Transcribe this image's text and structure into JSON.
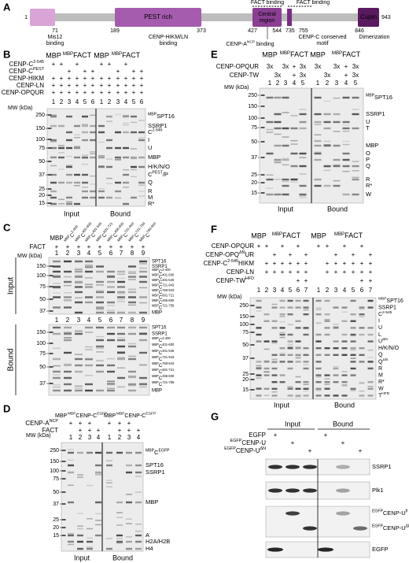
{
  "panel_a": {
    "letter": "A",
    "start": "1",
    "end": "943",
    "domains": [
      "PEST rich",
      [
        "Central",
        "region"
      ],
      "Cupin"
    ],
    "positions": [
      "71",
      "189",
      "373",
      "427",
      "544",
      "735",
      "755",
      "846"
    ],
    "fact_binding": [
      "FACT binding",
      "FACT binding"
    ],
    "notes": [
      [
        "Mis12",
        "binding"
      ],
      [
        "CENP-HIKM/LN",
        "binding"
      ],
      {
        "text": "CENP-A",
        "sup": "NCP",
        "tail": " binding"
      },
      [
        "CENP-C conserved",
        "motif"
      ],
      "Dimerization"
    ]
  },
  "panel_b": {
    "letter": "B",
    "groups": [
      "MBP",
      {
        "lead": "MBP",
        "text": "FACT"
      },
      "MBP",
      {
        "lead": "MBP",
        "text": "FACT"
      }
    ],
    "conditions": [
      {
        "name": {
          "text": "CENP-C",
          "sup": "2-545"
        },
        "marks": [
          "+",
          "+",
          null,
          "+",
          null,
          null,
          "+",
          "+",
          null,
          "+",
          null,
          null
        ]
      },
      {
        "name": {
          "text": "CENP-C",
          "sup": "PEST"
        },
        "marks": [
          null,
          null,
          "+",
          null,
          "+",
          "+",
          null,
          null,
          "+",
          null,
          "+",
          "+"
        ]
      },
      {
        "name": "CENP-HIKM",
        "marks": [
          "+",
          "+",
          "+",
          "+",
          "+",
          "+",
          "+",
          "+",
          "+",
          "+",
          "+",
          "+"
        ]
      },
      {
        "name": "CENP-LN",
        "marks": [
          "+",
          "+",
          "+",
          "+",
          "+",
          "+",
          "+",
          "+",
          "+",
          "+",
          "+",
          "+"
        ]
      },
      {
        "name": "CENP-OPQUR",
        "marks": [
          "+",
          "+",
          "+",
          "+",
          "+",
          "+",
          "+",
          "+",
          "+",
          "+",
          "+",
          "+"
        ]
      }
    ],
    "lanes": [
      1,
      2,
      3,
      4,
      5,
      6,
      1,
      2,
      3,
      4,
      5,
      6
    ],
    "mw_title": "MW (kDa)",
    "mw": [
      250,
      150,
      100,
      75,
      50,
      37,
      25,
      20,
      15
    ],
    "bands": [
      {
        "lead": "MBP",
        "text": "SPT16"
      },
      "SSRP1",
      {
        "text": "C",
        "sup": "2-545"
      },
      "I",
      "U",
      "MBP",
      "H/K/N/O",
      {
        "text": "C",
        "sup": "PEST",
        "tail": "/P"
      },
      "Q",
      "R",
      "M",
      "R*"
    ],
    "sections": [
      "Input",
      "Bound"
    ]
  },
  "panel_c": {
    "letter": "C",
    "headers": [
      "MBP",
      {
        "lead": "MBP",
        "text": "C",
        "sup": "2-400"
      },
      {
        "lead": "MBP",
        "text": "C",
        "sup": "401-600"
      },
      {
        "lead": "MBP",
        "text": "C",
        "sup": "401-545"
      },
      {
        "lead": "MBP",
        "text": "C",
        "sup": "601-721"
      },
      {
        "lead": "MBP",
        "text": "C",
        "sup": "456-600"
      },
      {
        "lead": "MBP",
        "text": "C",
        "sup": "721-943"
      },
      {
        "lead": "MBP",
        "text": "C",
        "sup": "721-759"
      },
      {
        "lead": "MBP",
        "text": "C",
        "sup": "760-943"
      }
    ],
    "fact": {
      "name": "FACT",
      "marks": [
        "+",
        "+",
        "+",
        "+",
        "+",
        "+",
        "+",
        "+",
        "+"
      ]
    },
    "mw_title": "MW (kDa)",
    "input": {
      "label": "Input",
      "lanes": [
        1,
        2,
        3,
        4,
        5,
        6,
        7,
        8,
        9
      ],
      "mw": [
        150,
        100,
        75,
        50,
        37
      ],
      "bands": [
        "SPT16",
        "SSRP1",
        {
          "lead": "MBP",
          "text": "C",
          "sup": "2-400"
        },
        {
          "lead": "MBP",
          "text": "C",
          "sup": "401-600"
        },
        {
          "lead": "MBP",
          "text": "C",
          "sup": "401-545"
        },
        {
          "lead": "MBP",
          "text": "C",
          "sup": "721-943"
        },
        {
          "lead": "MBP",
          "text": "C",
          "sup": "760-943"
        },
        {
          "lead": "MBP",
          "text": "C",
          "sup": "601-721"
        },
        {
          "lead": "MBP",
          "text": "C",
          "sup": "456-600"
        },
        {
          "lead": "MBP",
          "text": "C",
          "sup": "721-759"
        },
        "MBP"
      ]
    },
    "bound": {
      "label": "Bound",
      "lanes": [
        1,
        2,
        3,
        4,
        5,
        6,
        7,
        8,
        9
      ],
      "mw": [
        150,
        100,
        75,
        50,
        37
      ],
      "bands": [
        "SPT16",
        "SSRP1",
        {
          "lead": "MBP",
          "text": "C",
          "sup": "2-400"
        },
        {
          "lead": "MBP",
          "text": "C",
          "sup": "401-600"
        },
        {
          "lead": "MBP",
          "text": "C",
          "sup": "401-545"
        },
        {
          "lead": "MBP",
          "text": "C",
          "sup": "721-943"
        },
        {
          "lead": "MBP",
          "text": "C",
          "sup": "760-943"
        },
        {
          "lead": "MBP",
          "text": "C",
          "sup": "601-721"
        },
        {
          "lead": "MBP",
          "text": "C",
          "sup": "456-600"
        },
        {
          "lead": "MBP",
          "text": "C",
          "sup": "721-759"
        },
        "MBP"
      ]
    }
  },
  "panel_d": {
    "letter": "D",
    "groups": [
      "MBP",
      {
        "lead": "MBP",
        "text": "CENP-C",
        "sup": "EGFP"
      },
      "MBP",
      {
        "lead": "MBP",
        "text": "CENP-C",
        "sup": "EGFP"
      }
    ],
    "conditions": [
      {
        "name": {
          "text": "CENP-A",
          "sup": "NCP"
        },
        "marks": [
          "+",
          "+",
          "+",
          null,
          "+",
          "+",
          "+",
          null
        ]
      },
      {
        "name": "FACT",
        "marks": [
          null,
          "+",
          "+",
          "+",
          null,
          "+",
          "+",
          "+"
        ]
      }
    ],
    "lanes": [
      1,
      2,
      3,
      4,
      1,
      2,
      3,
      4
    ],
    "mw_title": "MW (kDa)",
    "mw": [
      250,
      150,
      100,
      75,
      50,
      37,
      25,
      20,
      15
    ],
    "bands": [
      {
        "lead": "MBP",
        "text": "C",
        "sup": "EGFP"
      },
      "SPT16",
      "SSRP1",
      "MBP",
      "A",
      "H2A/H2B",
      "H4"
    ],
    "sections": [
      "Input",
      "Bound"
    ]
  },
  "panel_e": {
    "letter": "E",
    "groups": [
      "MBP",
      {
        "lead": "MBP",
        "text": "FACT"
      },
      "MBP",
      {
        "lead": "MBP",
        "text": "FACT"
      }
    ],
    "conditions": [
      {
        "name": "CENP-OPQUR",
        "marks": [
          "3x",
          null,
          "3x",
          "+",
          "3x",
          "3x",
          null,
          "3x",
          "+",
          "3x"
        ]
      },
      {
        "name": "CENP-TW",
        "marks": [
          null,
          "3x",
          null,
          "+",
          "3x",
          null,
          "3x",
          null,
          "+",
          "3x"
        ]
      }
    ],
    "lanes": [
      1,
      2,
      3,
      4,
      5,
      1,
      2,
      3,
      4,
      5
    ],
    "mw_title": "MW (kDa)",
    "mw": [
      250,
      150,
      100,
      75,
      50,
      37,
      25,
      20,
      15
    ],
    "bands": [
      {
        "lead": "MBP",
        "text": "SPT16"
      },
      "SSRP1",
      "U",
      "T",
      "MBP",
      "O",
      "P",
      "Q",
      "R",
      "R*",
      "W"
    ],
    "sections": [
      "Input",
      "Bound"
    ]
  },
  "panel_f": {
    "letter": "F",
    "groups": [
      "MBP",
      {
        "lead": "MBP",
        "text": "FACT"
      },
      "MBP",
      {
        "lead": "MBP",
        "text": "FACT"
      }
    ],
    "conditions": [
      {
        "name": "CENP-OPQUR",
        "marks": [
          "+",
          "+",
          null,
          "+",
          null,
          "+",
          null,
          "+",
          "+",
          null,
          "+",
          null,
          "+",
          null
        ]
      },
      {
        "name": {
          "text": "CENP-OPQ",
          "sup": "ΔN",
          "tail": "UR"
        },
        "marks": [
          null,
          null,
          "+",
          null,
          "+",
          null,
          "+",
          null,
          null,
          "+",
          null,
          "+",
          null,
          "+"
        ]
      },
      {
        "name": {
          "text": "CENP-C",
          "sup": "2-545",
          "tail": "HIKM"
        },
        "marks": [
          null,
          "+",
          "+",
          "+",
          "+",
          "+",
          "+",
          null,
          "+",
          "+",
          "+",
          "+",
          "+",
          "+"
        ]
      },
      {
        "name": "CENP-LN",
        "marks": [
          null,
          "+",
          "+",
          "+",
          "+",
          "+",
          "+",
          null,
          "+",
          "+",
          "+",
          "+",
          "+",
          "+"
        ]
      },
      {
        "name": {
          "text": "CENP-TW",
          "sup": "HFD"
        },
        "marks": [
          null,
          null,
          null,
          null,
          null,
          "+",
          "+",
          null,
          null,
          null,
          null,
          null,
          "+",
          "+"
        ]
      }
    ],
    "lanes": [
      1,
      2,
      3,
      4,
      5,
      6,
      7,
      1,
      2,
      3,
      4,
      5,
      6,
      7
    ],
    "mw_title": "MW (kDa)",
    "mw": [
      250,
      150,
      100,
      75,
      50,
      37,
      25,
      20,
      15
    ],
    "bands": [
      {
        "lead": "MBP",
        "text": "SPT16"
      },
      "SSRP1",
      {
        "text": "C",
        "sup": "2-545"
      },
      "I",
      "U",
      "L",
      {
        "text": "U",
        "sup": "ΔN"
      },
      "H/K/N/O",
      "Q",
      {
        "text": "Q",
        "sup": "ΔN"
      },
      "R",
      "M",
      "R*",
      "W",
      {
        "text": "T",
        "sup": "HFD"
      }
    ],
    "sections": [
      "Input",
      "Bound"
    ]
  },
  "panel_g": {
    "letter": "G",
    "sections": [
      "Input",
      "Bound"
    ],
    "conditions": [
      {
        "name": "EGFP",
        "marks": [
          "+",
          null,
          null,
          "+",
          null,
          null
        ]
      },
      {
        "name": {
          "lead": "EGFP",
          "text": "CENP-U"
        },
        "marks": [
          null,
          "+",
          null,
          null,
          "+",
          null
        ]
      },
      {
        "name": {
          "lead": "EGFP",
          "text": "CENP-U",
          "sup": "ΔN"
        },
        "marks": [
          null,
          null,
          "+",
          null,
          null,
          "+"
        ]
      }
    ],
    "blots": [
      "SSRP1",
      "Plk1",
      {
        "lead": "EGFP",
        "text": "CENP-U",
        "sup": "fl"
      },
      {
        "lead": "EGFP",
        "text": "CENP-U",
        "sup": "ΔN"
      },
      "EGFP"
    ]
  }
}
